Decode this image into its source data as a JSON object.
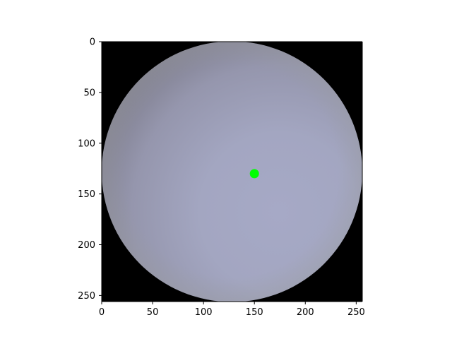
{
  "chart_data": {
    "type": "scatter",
    "title": "",
    "xlabel": "",
    "ylabel": "",
    "image": {
      "description": "shaded sphere rendering on black background",
      "width": 256,
      "height": 256,
      "background_color": "#000000",
      "sphere_center": [
        128,
        128
      ],
      "sphere_radius": 128,
      "sphere_base_color": "#a6a9c6",
      "sphere_shadow_color": "#6e6c7a",
      "sphere_edge_color": "#9a9c9e"
    },
    "x": [
      150
    ],
    "y": [
      130
    ],
    "marker_color": "#00ff00",
    "xlim": [
      0,
      256
    ],
    "ylim": [
      256,
      0
    ],
    "x_ticks": [
      0,
      50,
      100,
      150,
      200,
      250
    ],
    "y_ticks": [
      0,
      50,
      100,
      150,
      200,
      250
    ],
    "x_tick_labels": [
      "0",
      "50",
      "100",
      "150",
      "200",
      "250"
    ],
    "y_tick_labels": [
      "0",
      "50",
      "100",
      "150",
      "200",
      "250"
    ],
    "grid": false,
    "legend": "none"
  }
}
